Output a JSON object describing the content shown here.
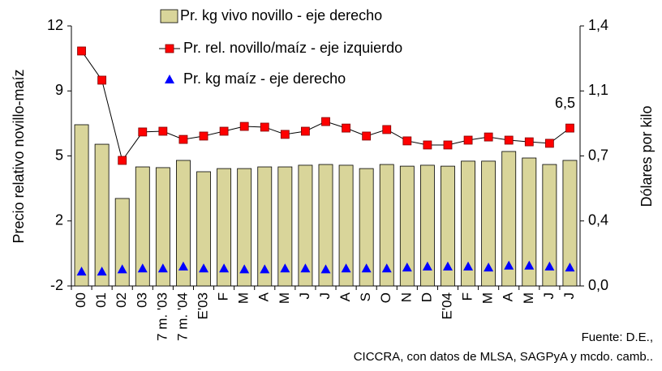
{
  "chart_data": {
    "type": "bar",
    "y_label": "Precio relativo novillo-maíz",
    "y2_label": "Dólares por kilo",
    "source": [
      "Fuente: D.E.,",
      "CICCRA, con datos de MLSA, SAGPyA y mcdo. camb.."
    ],
    "categories": [
      "00",
      "01",
      "02",
      "03",
      "7 m. '03",
      "7 m. '04",
      "E'03",
      "F",
      "M",
      "A",
      "M",
      "J",
      "J",
      "A",
      "S",
      "O",
      "N",
      "D",
      "E'04",
      "F",
      "M",
      "A",
      "M",
      "J",
      "J"
    ],
    "series": [
      {
        "name": "Pr. kg vivo novillo - eje derecho",
        "type": "bar",
        "axis": "y2",
        "color": "#d9d59a",
        "values": [
          0.868,
          0.763,
          0.471,
          0.641,
          0.637,
          0.676,
          0.615,
          0.632,
          0.632,
          0.641,
          0.641,
          0.65,
          0.654,
          0.65,
          0.632,
          0.654,
          0.645,
          0.65,
          0.645,
          0.672,
          0.672,
          0.724,
          0.689,
          0.654,
          0.676
        ]
      },
      {
        "name": "Pr. rel. novillo/maíz - eje izquierdo",
        "type": "line",
        "axis": "y",
        "color": "#ff0000",
        "values": [
          10.65,
          9.08,
          4.76,
          6.29,
          6.33,
          5.89,
          6.07,
          6.33,
          6.59,
          6.55,
          6.16,
          6.33,
          6.85,
          6.5,
          6.07,
          6.42,
          5.81,
          5.59,
          5.59,
          5.85,
          6.02,
          5.85,
          5.76,
          5.68,
          6.5
        ],
        "value_labels": [
          null,
          null,
          null,
          null,
          null,
          null,
          null,
          null,
          null,
          null,
          null,
          null,
          null,
          null,
          null,
          null,
          null,
          null,
          null,
          null,
          null,
          null,
          null,
          null,
          "6,5"
        ]
      },
      {
        "name": "Pr. kg maíz - eje derecho",
        "type": "scatter",
        "axis": "y2",
        "color": "#0000ff",
        "values": [
          0.078,
          0.078,
          0.09,
          0.095,
          0.095,
          0.105,
          0.095,
          0.095,
          0.09,
          0.09,
          0.095,
          0.095,
          0.09,
          0.095,
          0.095,
          0.095,
          0.1,
          0.105,
          0.105,
          0.105,
          0.1,
          0.11,
          0.11,
          0.105,
          0.1
        ]
      }
    ],
    "ylim": [
      -2,
      12
    ],
    "yticks": [
      -2,
      {
        "value": 1.5,
        "label": "2"
      },
      5,
      {
        "value": 8.5,
        "label": "9"
      },
      12
    ],
    "y2lim": [
      0,
      1.4
    ],
    "y2ticks": [
      {
        "value": 0,
        "label": "0,0"
      },
      {
        "value": 0.35,
        "label": "0,4"
      },
      {
        "value": 0.7,
        "label": "0,7"
      },
      {
        "value": 1.05,
        "label": "1,1"
      },
      {
        "value": 1.4,
        "label": "1,4"
      }
    ],
    "grid": false,
    "legend": "top-left"
  }
}
